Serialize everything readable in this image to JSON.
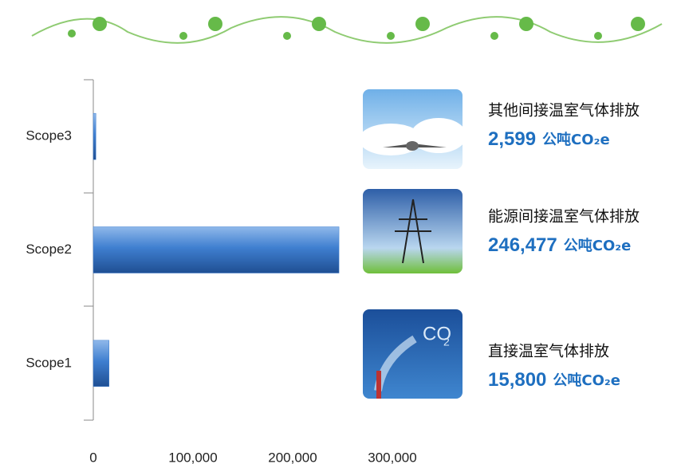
{
  "chart_data": {
    "type": "bar",
    "orientation": "horizontal",
    "categories": [
      "Scope3",
      "Scope2",
      "Scope1"
    ],
    "values": [
      2599,
      246477,
      15800
    ],
    "value_labels": [
      "2,599",
      "246,477",
      "15,800"
    ],
    "descriptions": [
      "其他间接温室气体排放",
      "能源间接温室气体排放",
      "直接温室气体排放"
    ],
    "unit": "公吨CO₂e",
    "color": "#3f7fd0",
    "xlim": [
      0,
      300000
    ],
    "xticks": [
      0,
      {
        "value": 100000,
        "label": "100,000"
      },
      {
        "value": 200000,
        "label": "200,000"
      },
      {
        "value": 300000,
        "label": "300,000"
      }
    ]
  }
}
